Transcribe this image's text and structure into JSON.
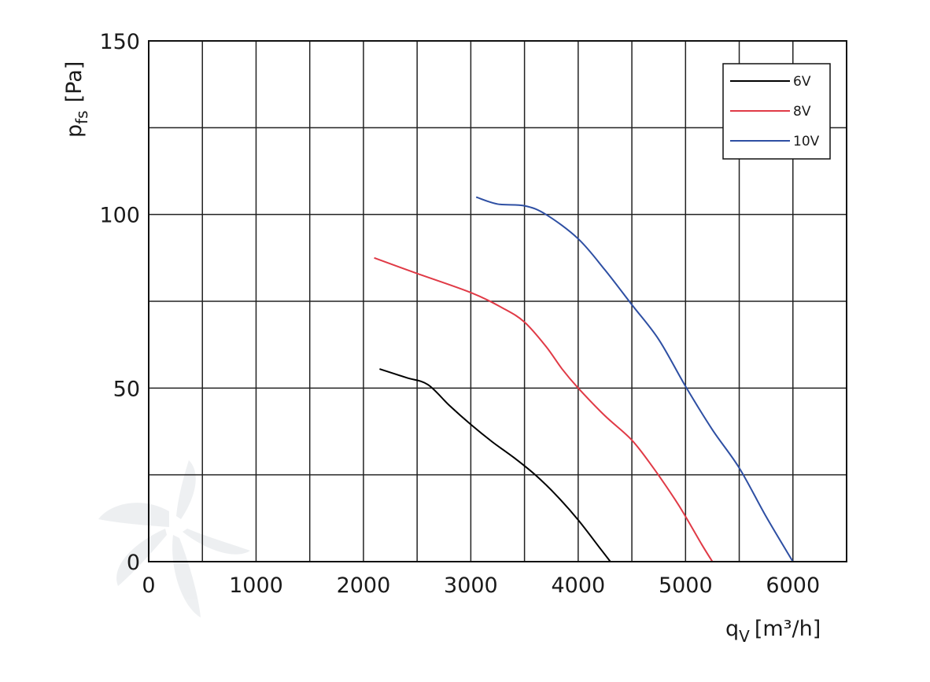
{
  "chart_data": {
    "type": "line",
    "xlim": [
      0,
      6500
    ],
    "ylim": [
      0,
      150
    ],
    "x_ticks": [
      0,
      1000,
      2000,
      3000,
      4000,
      5000,
      6000
    ],
    "y_ticks": [
      0,
      50,
      100,
      150
    ],
    "x_grid_step": 500,
    "y_grid_step": 25,
    "grid": true,
    "ylabel_main": "p",
    "ylabel_sub": "fs",
    "ylabel_unit": "[Pa]",
    "xlabel_main": "q",
    "xlabel_sub": "V",
    "xlabel_unit": "[m³/h]",
    "legend_position": "top-right",
    "series": [
      {
        "name": "6V",
        "color": "#000000",
        "points": [
          [
            2150,
            55.5
          ],
          [
            2400,
            53
          ],
          [
            2600,
            51
          ],
          [
            2800,
            45
          ],
          [
            3000,
            39.5
          ],
          [
            3200,
            34.5
          ],
          [
            3400,
            30
          ],
          [
            3600,
            25
          ],
          [
            3800,
            19
          ],
          [
            4000,
            12
          ],
          [
            4200,
            4
          ],
          [
            4300,
            0
          ]
        ]
      },
      {
        "name": "8V",
        "color": "#e03a46",
        "points": [
          [
            2100,
            87.5
          ],
          [
            2500,
            83
          ],
          [
            3000,
            77.5
          ],
          [
            3300,
            73
          ],
          [
            3500,
            69
          ],
          [
            3700,
            62
          ],
          [
            3850,
            55.5
          ],
          [
            4000,
            50
          ],
          [
            4250,
            42
          ],
          [
            4500,
            35
          ],
          [
            4700,
            27
          ],
          [
            4900,
            18
          ],
          [
            5000,
            13
          ],
          [
            5150,
            5
          ],
          [
            5250,
            0
          ]
        ]
      },
      {
        "name": "10V",
        "color": "#2e4fa3",
        "points": [
          [
            3050,
            105
          ],
          [
            3250,
            103
          ],
          [
            3500,
            102.5
          ],
          [
            3700,
            100
          ],
          [
            4000,
            93
          ],
          [
            4250,
            84
          ],
          [
            4500,
            74
          ],
          [
            4750,
            64
          ],
          [
            5000,
            50.5
          ],
          [
            5250,
            38
          ],
          [
            5500,
            27
          ],
          [
            5750,
            13
          ],
          [
            6000,
            0
          ]
        ]
      }
    ]
  }
}
